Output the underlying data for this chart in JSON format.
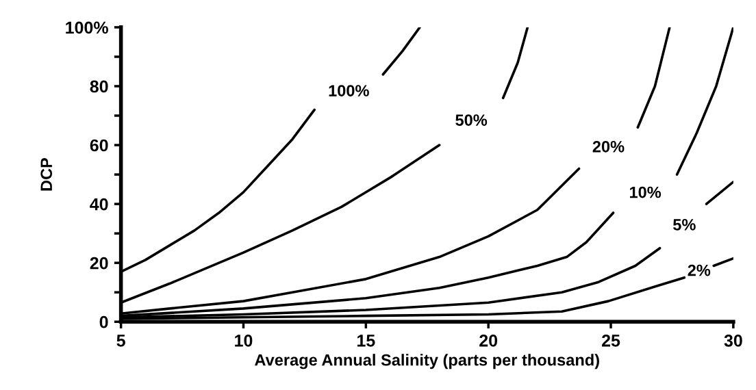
{
  "chart_data": {
    "type": "line",
    "xlabel": "Average Annual Salinity (parts per thousand)",
    "ylabel": "DCP",
    "xlim": [
      5,
      30
    ],
    "xticks": [
      5,
      10,
      15,
      20,
      25,
      30
    ],
    "ylim": [
      0,
      100
    ],
    "yticks": [
      0,
      {
        "value": 10,
        "label": null
      },
      20,
      {
        "value": 30,
        "label": null
      },
      40,
      {
        "value": 50,
        "label": null
      },
      60,
      {
        "value": 70,
        "label": null
      },
      80,
      {
        "value": 90,
        "label": null
      },
      {
        "value": 100,
        "label": "100%"
      }
    ],
    "grid": false,
    "legend": false,
    "marker": "none",
    "line_style": "solid",
    "series": [
      {
        "name": "100%",
        "color": "#000000",
        "x": [
          5,
          6,
          7,
          8,
          9,
          10,
          11,
          12,
          12.9,
          14.3,
          15.7,
          16.5,
          17.2
        ],
        "values": [
          17,
          21,
          26,
          31,
          37,
          44,
          53,
          62,
          72,
          null,
          84,
          92,
          100
        ]
      },
      {
        "name": "50%",
        "color": "#000000",
        "x": [
          5,
          7,
          10,
          12,
          14,
          16,
          18,
          19.3,
          20.6,
          21.2,
          21.6
        ],
        "values": [
          6.5,
          13,
          23.5,
          31,
          39,
          49,
          60,
          null,
          76,
          88,
          100
        ]
      },
      {
        "name": "20%",
        "color": "#000000",
        "x": [
          5,
          7,
          10,
          12,
          15,
          18,
          20,
          22,
          23.7,
          24.9,
          26.1,
          26.8,
          27.4
        ],
        "values": [
          2.8,
          4.5,
          7,
          10,
          14.5,
          22,
          29,
          38,
          52,
          null,
          66,
          80,
          100
        ]
      },
      {
        "name": "10%",
        "color": "#000000",
        "x": [
          5,
          10,
          15,
          18,
          20,
          22,
          23.2,
          24,
          25.1,
          26.4,
          27.7,
          28.5,
          29.3,
          30
        ],
        "values": [
          2,
          4.5,
          8,
          11.5,
          15,
          19,
          22,
          27,
          37,
          null,
          50,
          64,
          80,
          100
        ]
      },
      {
        "name": "5%",
        "color": "#000000",
        "x": [
          5,
          10,
          15,
          20,
          23,
          24.5,
          26,
          27,
          28,
          28.9,
          30
        ],
        "values": [
          1.5,
          2.5,
          4,
          6.5,
          10,
          13.5,
          19,
          25,
          null,
          40,
          47.5
        ]
      },
      {
        "name": "2%",
        "color": "#000000",
        "x": [
          5,
          10,
          15,
          20,
          23,
          24.9,
          26.9,
          28,
          28.6,
          29.2,
          30
        ],
        "values": [
          1,
          1.5,
          2,
          2.5,
          3.5,
          7,
          12.2,
          15,
          null,
          19,
          21.5
        ]
      }
    ]
  }
}
